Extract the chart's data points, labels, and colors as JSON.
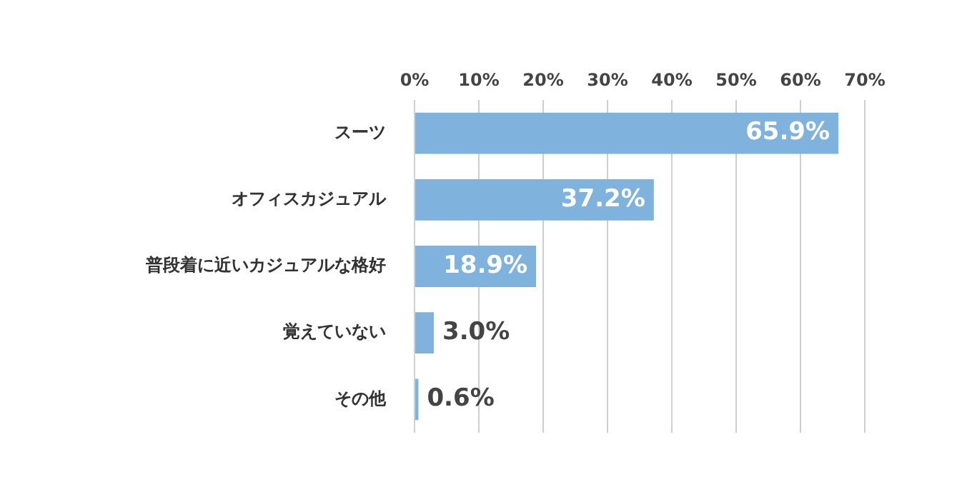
{
  "chart_data": {
    "type": "bar",
    "orientation": "horizontal",
    "categories": [
      "スーツ",
      "オフィスカジュアル",
      "普段着に近いカジュアルな格好",
      "覚えていない",
      "その他"
    ],
    "values": [
      65.9,
      37.2,
      18.9,
      3.0,
      0.6
    ],
    "value_labels": [
      "65.9%",
      "37.2%",
      "18.9%",
      "3.0%",
      "0.6%"
    ],
    "color": "#7fb2dc",
    "xlim": [
      0,
      70
    ],
    "xticks": [
      {
        "value": 0,
        "label": "0%"
      },
      {
        "value": 10,
        "label": "10%"
      },
      {
        "value": 20,
        "label": "20%"
      },
      {
        "value": 30,
        "label": "30%"
      },
      {
        "value": 40,
        "label": "40%"
      },
      {
        "value": 50,
        "label": "50%"
      },
      {
        "value": 60,
        "label": "60%"
      },
      {
        "value": 70,
        "label": "70%"
      }
    ],
    "grid": "x"
  }
}
